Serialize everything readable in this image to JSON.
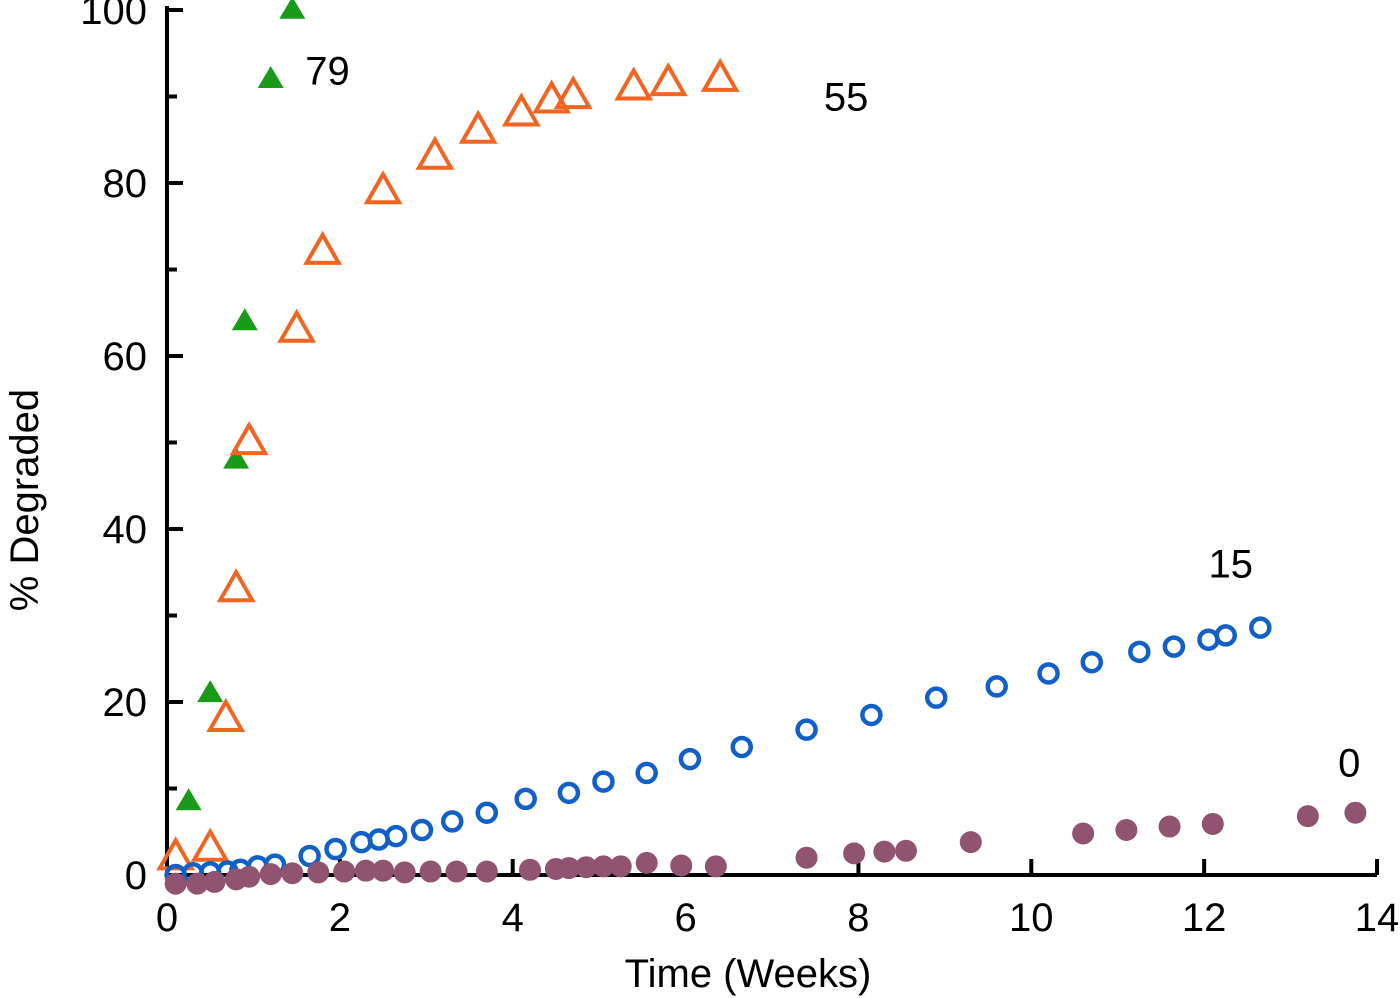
{
  "chart_data": {
    "type": "scatter",
    "title": "",
    "xlabel": "Time (Weeks)",
    "ylabel": "% Degraded",
    "xlim": [
      0,
      14
    ],
    "ylim": [
      0,
      100
    ],
    "xticks": [
      "0",
      "2",
      "4",
      "6",
      "8",
      "10",
      "12",
      "14"
    ],
    "yticks": [
      "0",
      "20",
      "40",
      "60",
      "80",
      "100"
    ],
    "grid": false,
    "legend": "none",
    "series": [
      {
        "name": "79",
        "marker": "filled-triangle",
        "color": "#1a9a1a",
        "label_at": [
          1.6,
          93
        ],
        "points": [
          [
            0.25,
            8.5
          ],
          [
            0.5,
            21
          ],
          [
            0.8,
            48
          ],
          [
            0.9,
            64
          ],
          [
            1.2,
            92
          ],
          [
            1.45,
            100
          ]
        ]
      },
      {
        "name": "55",
        "marker": "open-triangle",
        "color": "#f06522",
        "label_at": [
          7.6,
          90
        ],
        "points": [
          [
            0.1,
            2
          ],
          [
            0.5,
            3
          ],
          [
            0.68,
            18
          ],
          [
            0.8,
            33
          ],
          [
            0.95,
            50
          ],
          [
            1.5,
            63
          ],
          [
            1.8,
            72
          ],
          [
            2.5,
            79
          ],
          [
            3.1,
            83
          ],
          [
            3.6,
            86
          ],
          [
            4.1,
            88
          ],
          [
            4.45,
            89.5
          ],
          [
            4.7,
            90
          ],
          [
            5.4,
            91
          ],
          [
            5.8,
            91.5
          ],
          [
            6.4,
            92
          ]
        ]
      },
      {
        "name": "15",
        "marker": "open-circle",
        "color": "#1060c8",
        "label_at": [
          12.05,
          36
        ],
        "points": [
          [
            0.1,
            0
          ],
          [
            0.3,
            0.2
          ],
          [
            0.5,
            0.3
          ],
          [
            0.7,
            0.4
          ],
          [
            0.85,
            0.6
          ],
          [
            1.05,
            1
          ],
          [
            1.25,
            1.2
          ],
          [
            1.65,
            2.2
          ],
          [
            1.95,
            3
          ],
          [
            2.25,
            3.8
          ],
          [
            2.45,
            4.1
          ],
          [
            2.65,
            4.5
          ],
          [
            2.95,
            5.2
          ],
          [
            3.3,
            6.2
          ],
          [
            3.7,
            7.2
          ],
          [
            4.15,
            8.8
          ],
          [
            4.65,
            9.5
          ],
          [
            5.05,
            10.8
          ],
          [
            5.55,
            11.8
          ],
          [
            6.05,
            13.4
          ],
          [
            6.65,
            14.8
          ],
          [
            7.4,
            16.8
          ],
          [
            8.15,
            18.5
          ],
          [
            8.9,
            20.5
          ],
          [
            9.6,
            21.8
          ],
          [
            10.2,
            23.3
          ],
          [
            10.7,
            24.6
          ],
          [
            11.25,
            25.8
          ],
          [
            11.65,
            26.4
          ],
          [
            12.05,
            27.2
          ],
          [
            12.25,
            27.7
          ],
          [
            12.65,
            28.6
          ]
        ]
      },
      {
        "name": "0",
        "marker": "filled-circle",
        "color": "#915470",
        "label_at": [
          13.55,
          13
        ],
        "points": [
          [
            0.1,
            -1
          ],
          [
            0.35,
            -1
          ],
          [
            0.55,
            -0.8
          ],
          [
            0.8,
            -0.5
          ],
          [
            0.95,
            -0.2
          ],
          [
            1.2,
            0.1
          ],
          [
            1.45,
            0.2
          ],
          [
            1.75,
            0.3
          ],
          [
            2.05,
            0.4
          ],
          [
            2.3,
            0.5
          ],
          [
            2.5,
            0.5
          ],
          [
            2.75,
            0.3
          ],
          [
            3.05,
            0.4
          ],
          [
            3.35,
            0.4
          ],
          [
            3.7,
            0.4
          ],
          [
            4.2,
            0.6
          ],
          [
            4.5,
            0.7
          ],
          [
            4.65,
            0.8
          ],
          [
            4.85,
            0.9
          ],
          [
            5.05,
            1
          ],
          [
            5.25,
            1
          ],
          [
            5.55,
            1.4
          ],
          [
            5.95,
            1.1
          ],
          [
            6.35,
            1
          ],
          [
            7.4,
            2
          ],
          [
            7.95,
            2.5
          ],
          [
            8.3,
            2.7
          ],
          [
            8.55,
            2.8
          ],
          [
            9.3,
            3.8
          ],
          [
            10.6,
            4.8
          ],
          [
            11.1,
            5.2
          ],
          [
            11.6,
            5.6
          ],
          [
            12.1,
            5.9
          ],
          [
            13.2,
            6.8
          ],
          [
            13.75,
            7.2
          ]
        ]
      }
    ]
  }
}
